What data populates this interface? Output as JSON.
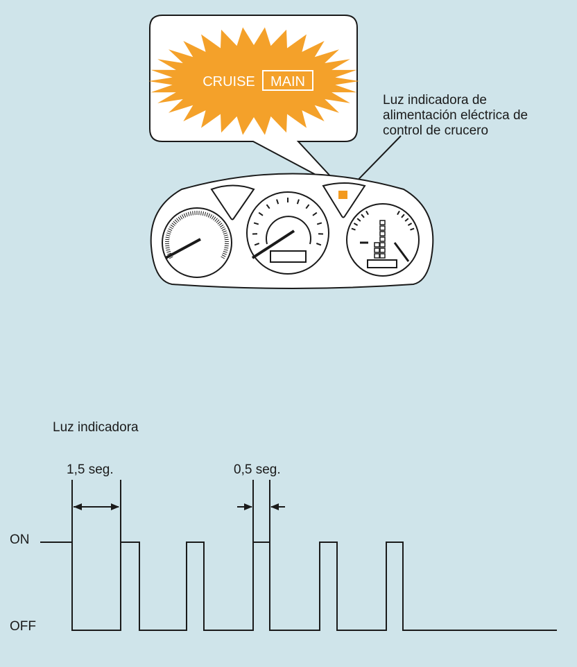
{
  "callout": {
    "badge_word1": "CRUISE",
    "badge_word2": "MAIN",
    "badge_glow_color": "#f4a12a",
    "indicator_color": "#f39a1f"
  },
  "label": {
    "lines": [
      "Luz indicadora de",
      "alimentación eléctrica de",
      "control de crucero"
    ]
  },
  "timing": {
    "title": "Luz indicadora",
    "duration_long": "1,5 seg.",
    "duration_short": "0,5 seg.",
    "level_on": "ON",
    "level_off": "OFF"
  }
}
